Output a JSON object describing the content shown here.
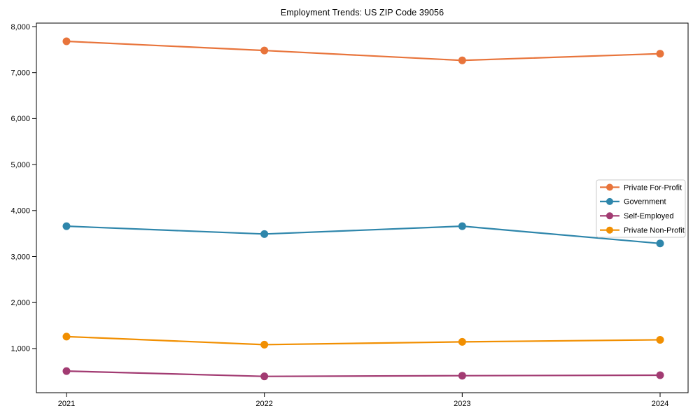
{
  "title": "Employment Trends: US ZIP Code 39056",
  "chart_data": {
    "type": "line",
    "title": "Employment Trends: US ZIP Code 39056",
    "xlabel": "",
    "ylabel": "",
    "x": [
      2021,
      2022,
      2023,
      2024
    ],
    "x_tick_labels": [
      "2021",
      "2022",
      "2023",
      "2024"
    ],
    "series": [
      {
        "name": "Private For-Profit",
        "color": "#E8743B",
        "values": [
          7680,
          7480,
          7265,
          7410
        ]
      },
      {
        "name": "Government",
        "color": "#2E86AB",
        "values": [
          3660,
          3490,
          3660,
          3285
        ]
      },
      {
        "name": "Self-Employed",
        "color": "#A23B72",
        "values": [
          510,
          395,
          410,
          420
        ]
      },
      {
        "name": "Private Non-Profit",
        "color": "#F18F01",
        "values": [
          1260,
          1085,
          1145,
          1190
        ]
      }
    ],
    "yticks": [
      1000,
      2000,
      3000,
      4000,
      5000,
      6000,
      7000,
      8000
    ],
    "ytick_labels": [
      "1,000",
      "2,000",
      "3,000",
      "4,000",
      "5,000",
      "6,000",
      "7,000",
      "8,000"
    ],
    "ylim": [
      40,
      8076
    ],
    "grid": false,
    "marker": "circle",
    "legend_position": "right",
    "legend_border_color": "#cbcbcb",
    "axis_color": "#000000",
    "background_color": "#ffffff"
  }
}
